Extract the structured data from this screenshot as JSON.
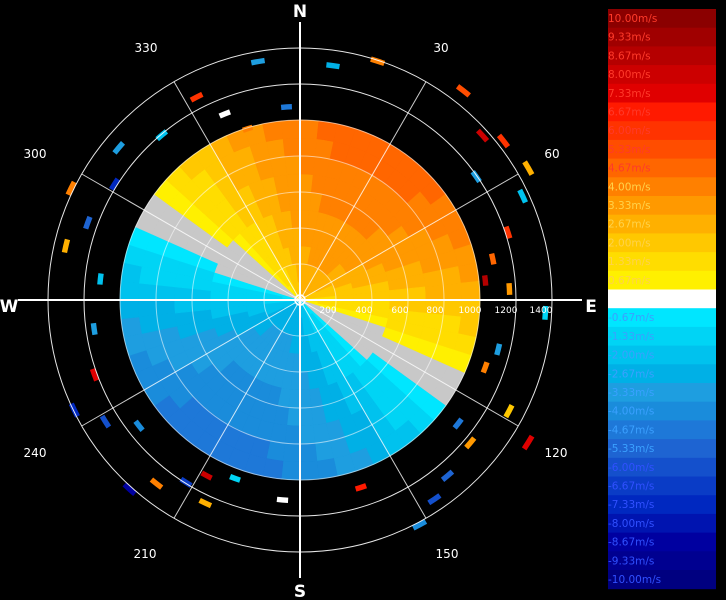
{
  "chart_data": {
    "type": "heatmap",
    "subtype": "polar-radial-velocity-ppi",
    "cardinals": [
      "N",
      "E",
      "S",
      "W"
    ],
    "azimuth_labels": [
      "30",
      "60",
      "120",
      "150",
      "210",
      "240",
      "300",
      "330"
    ],
    "range_labels": [
      "200",
      "400",
      "600",
      "800",
      "1000",
      "1200",
      "1400"
    ],
    "range_max": 1400,
    "data_disk_range": 1000,
    "legend": {
      "unit": "m/s",
      "labels": [
        "10.00m/s",
        "9.33m/s",
        "8.67m/s",
        "8.00m/s",
        "7.33m/s",
        "6.67m/s",
        "6.00m/s",
        "5.33m/s",
        "4.67m/s",
        "4.00m/s",
        "3.33m/s",
        "2.67m/s",
        "2.00m/s",
        "1.33m/s",
        "0.67m/s",
        "0.00m/s",
        "-0.67m/s",
        "-1.33m/s",
        "-2.00m/s",
        "-2.67m/s",
        "-3.33m/s",
        "-4.00m/s",
        "-4.67m/s",
        "-5.33m/s",
        "-6.00m/s",
        "-6.67m/s",
        "-7.33m/s",
        "-8.00m/s",
        "-8.67m/s",
        "-9.33m/s",
        "-10.00m/s"
      ],
      "colors": [
        "#8b0000",
        "#a00000",
        "#b50000",
        "#cc0000",
        "#e00000",
        "#ff1a00",
        "#ff3300",
        "#ff4d00",
        "#ff6600",
        "#ff8000",
        "#ff9900",
        "#ffb000",
        "#ffc800",
        "#ffdd00",
        "#fff000",
        "#ffffff",
        "#00e6ff",
        "#00d4f5",
        "#00c2ee",
        "#00b0e6",
        "#1e9ee0",
        "#1a8cdb",
        "#1e78d8",
        "#1e64d2",
        "#1450cc",
        "#0a3cc6",
        "#0028c0",
        "#0014b0",
        "#0000a0",
        "#000090",
        "#000080"
      ]
    },
    "velocity_field": {
      "pattern": "dipole",
      "max_inbound_azimuth_deg": 210,
      "max_outbound_azimuth_deg": 30,
      "approx_peak_m_s": 5.0
    },
    "scatter_gates": [
      {
        "az": 18,
        "r": 1380,
        "v": 4.0
      },
      {
        "az": 8,
        "r": 1300,
        "v": -2.67
      },
      {
        "az": 48,
        "r": 1350,
        "v": 8.0
      },
      {
        "az": 52,
        "r": 1420,
        "v": 6.0
      },
      {
        "az": 38,
        "r": 1460,
        "v": 5.33
      },
      {
        "az": 55,
        "r": 1180,
        "v": -3.33
      },
      {
        "az": 60,
        "r": 1450,
        "v": 2.67
      },
      {
        "az": 65,
        "r": 1350,
        "v": -2.0
      },
      {
        "az": 72,
        "r": 1200,
        "v": 6.0
      },
      {
        "az": 78,
        "r": 1080,
        "v": 4.67
      },
      {
        "az": 84,
        "r": 1020,
        "v": 8.67
      },
      {
        "az": 87,
        "r": 1150,
        "v": 3.33
      },
      {
        "az": 93,
        "r": 1350,
        "v": -1.33
      },
      {
        "az": 104,
        "r": 1120,
        "v": -3.33
      },
      {
        "az": 110,
        "r": 1080,
        "v": 4.0
      },
      {
        "az": 118,
        "r": 1300,
        "v": 2.0
      },
      {
        "az": 122,
        "r": 1480,
        "v": 7.33
      },
      {
        "az": 128,
        "r": 1100,
        "v": -4.67
      },
      {
        "az": 130,
        "r": 1220,
        "v": 3.33
      },
      {
        "az": 140,
        "r": 1260,
        "v": -5.33
      },
      {
        "az": 146,
        "r": 1320,
        "v": -6.0
      },
      {
        "az": 152,
        "r": 1400,
        "v": -4.0
      },
      {
        "az": 162,
        "r": 1080,
        "v": 6.67
      },
      {
        "az": 185,
        "r": 1100,
        "v": 0.0
      },
      {
        "az": 200,
        "r": 1040,
        "v": -1.33
      },
      {
        "az": 205,
        "r": 1230,
        "v": 2.67
      },
      {
        "az": 208,
        "r": 1090,
        "v": 8.0
      },
      {
        "az": 212,
        "r": 1180,
        "v": -6.67
      },
      {
        "az": 218,
        "r": 1280,
        "v": 4.0
      },
      {
        "az": 222,
        "r": 1400,
        "v": -8.67
      },
      {
        "az": 232,
        "r": 1120,
        "v": -4.0
      },
      {
        "az": 238,
        "r": 1260,
        "v": -6.0
      },
      {
        "az": 244,
        "r": 1380,
        "v": -7.33
      },
      {
        "az": 250,
        "r": 1200,
        "v": 7.33
      },
      {
        "az": 262,
        "r": 1140,
        "v": -3.33
      },
      {
        "az": 276,
        "r": 1100,
        "v": -2.0
      },
      {
        "az": 283,
        "r": 1320,
        "v": 2.67
      },
      {
        "az": 290,
        "r": 1240,
        "v": -5.33
      },
      {
        "az": 296,
        "r": 1400,
        "v": 4.0
      },
      {
        "az": 302,
        "r": 1200,
        "v": -7.33
      },
      {
        "az": 310,
        "r": 1300,
        "v": -3.33
      },
      {
        "az": 320,
        "r": 1180,
        "v": -2.0
      },
      {
        "az": 333,
        "r": 1250,
        "v": 6.0
      },
      {
        "az": 338,
        "r": 1100,
        "v": 0.0
      },
      {
        "az": 343,
        "r": 980,
        "v": 4.0
      },
      {
        "az": 350,
        "r": 1330,
        "v": -3.33
      },
      {
        "az": 356,
        "r": 1060,
        "v": -4.67
      }
    ]
  }
}
